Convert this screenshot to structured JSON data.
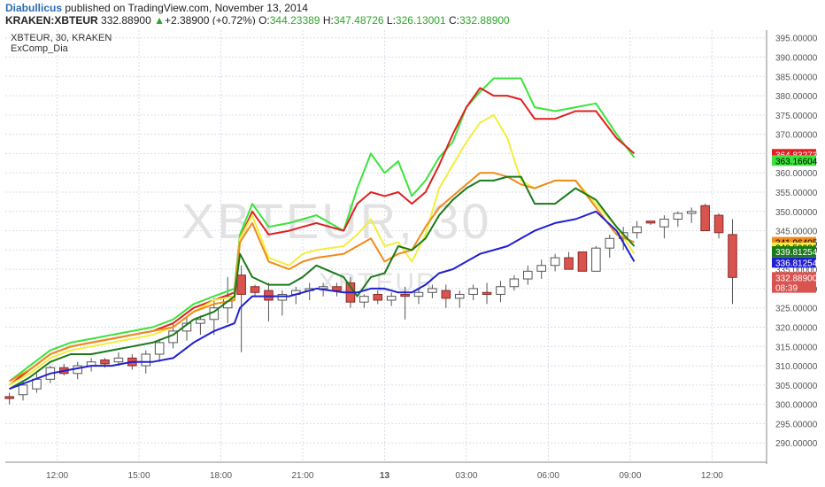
{
  "header": {
    "author": "Diabullicus",
    "published_text": "published on TradingView.com, November 13, 2014",
    "symbol": "KRAKEN:XBTEUR",
    "last": "332.88900",
    "change_arrow": "▲",
    "change": "+2.38900 (+0.72%)",
    "o_label": "O:",
    "o_value": "344.23389",
    "h_label": "H:",
    "h_value": "347.48726",
    "l_label": "L:",
    "l_value": "326.13001",
    "c_label": "C:",
    "c_value": "332.88900"
  },
  "legend": {
    "line1": "XBTEUR, 30, KRAKEN",
    "line2": "ExComp_Dia"
  },
  "watermark": {
    "main": "XBTEUR, 30",
    "sub": "XBTEUR"
  },
  "colors": {
    "up_candle": "#ffffff",
    "up_border": "#555555",
    "down_candle": "#d9534f",
    "down_border": "#8a2a26",
    "bright_green": "#3be33b",
    "red": "#e02020",
    "yellow": "#f2ee3c",
    "orange": "#f08a1a",
    "dark_green": "#1a7a1a",
    "blue": "#2020d0",
    "grid": "#d8dde8",
    "axis_text": "#555555"
  },
  "chart_data": {
    "type": "line",
    "ylim": [
      285,
      397
    ],
    "y_ticks": [
      "290.00000",
      "295.00000",
      "300.00000",
      "305.00000",
      "310.00000",
      "315.00000",
      "320.00000",
      "325.00000",
      "330.00000",
      "335.00000",
      "340.00000",
      "345.00000",
      "350.00000",
      "355.00000",
      "360.00000",
      "365.00000",
      "370.00000",
      "375.00000",
      "380.00000",
      "385.00000",
      "390.00000",
      "395.00000"
    ],
    "y_tick_values": [
      290,
      295,
      300,
      305,
      310,
      315,
      320,
      325,
      330,
      335,
      340,
      345,
      350,
      355,
      360,
      365,
      370,
      375,
      380,
      385,
      390,
      395
    ],
    "x_labels": [
      {
        "t": 3.5,
        "label": "12:00"
      },
      {
        "t": 9.5,
        "label": "15:00"
      },
      {
        "t": 15.5,
        "label": "18:00"
      },
      {
        "t": 21.5,
        "label": "21:00"
      },
      {
        "t": 27.5,
        "label": "13"
      },
      {
        "t": 33.5,
        "label": "03:00"
      },
      {
        "t": 39.5,
        "label": "06:00"
      },
      {
        "t": 45.5,
        "label": "09:00"
      },
      {
        "t": 51.5,
        "label": "12:00"
      }
    ],
    "candles": [
      [
        302,
        303,
        300,
        301.5
      ],
      [
        302.5,
        306,
        301,
        305
      ],
      [
        304,
        308,
        303,
        306.5
      ],
      [
        306.5,
        310,
        305.5,
        309.5
      ],
      [
        309.5,
        310.5,
        307.5,
        308
      ],
      [
        308,
        311,
        306.5,
        310
      ],
      [
        310,
        312,
        308.5,
        311
      ],
      [
        311.5,
        312,
        309.5,
        310.5
      ],
      [
        311,
        313.5,
        310,
        312
      ],
      [
        312,
        313,
        309,
        310
      ],
      [
        310,
        314,
        308,
        313
      ],
      [
        313,
        317,
        311,
        316
      ],
      [
        316,
        321,
        314.5,
        319
      ],
      [
        319,
        322.5,
        316.5,
        321
      ],
      [
        321,
        323,
        318,
        322
      ],
      [
        322,
        327.5,
        318,
        325
      ],
      [
        325,
        333,
        321,
        328
      ],
      [
        333.5,
        336,
        313.5,
        328.5
      ],
      [
        330.5,
        331,
        328,
        329
      ],
      [
        329.5,
        331.5,
        321.5,
        327
      ],
      [
        327,
        329.5,
        323,
        328.5
      ],
      [
        328.5,
        330.5,
        326,
        329.5
      ],
      [
        329.5,
        331.5,
        327,
        330
      ],
      [
        330,
        331.5,
        328,
        330.5
      ],
      [
        330.5,
        331.5,
        328,
        329.5
      ],
      [
        331.5,
        333,
        325,
        326.5
      ],
      [
        326.5,
        328.5,
        325,
        328
      ],
      [
        328.5,
        329.5,
        326,
        327
      ],
      [
        327,
        329,
        325.5,
        328
      ],
      [
        328.5,
        330.5,
        322,
        328
      ],
      [
        328,
        330,
        326,
        329
      ],
      [
        329,
        331,
        327.5,
        330
      ],
      [
        329.5,
        331,
        325,
        327.5
      ],
      [
        327.5,
        329.5,
        325,
        328.5
      ],
      [
        328.5,
        331,
        327,
        330
      ],
      [
        329,
        331.5,
        326,
        328.5
      ],
      [
        328.5,
        332,
        326.5,
        330.5
      ],
      [
        330.5,
        333.5,
        329.5,
        332.5
      ],
      [
        332.5,
        336,
        331,
        334.5
      ],
      [
        334.5,
        337.5,
        332.5,
        336
      ],
      [
        336,
        339,
        334.5,
        338
      ],
      [
        338,
        339.5,
        335,
        335
      ],
      [
        339.5,
        339.5,
        334.5,
        334.5
      ],
      [
        334.5,
        341,
        334.5,
        340.5
      ],
      [
        340.5,
        344,
        338,
        343
      ],
      [
        343,
        346,
        340,
        344.5
      ],
      [
        344.5,
        347.5,
        343,
        346
      ],
      [
        347.5,
        347.5,
        346.5,
        347
      ],
      [
        346,
        349,
        343,
        348
      ],
      [
        348,
        350,
        346,
        349.5
      ],
      [
        349.5,
        351,
        347,
        350
      ],
      [
        351.5,
        352,
        346,
        345
      ],
      [
        349,
        349.5,
        343,
        344.5
      ],
      [
        344,
        348,
        326,
        332.9
      ]
    ],
    "candle_t_start": 0,
    "series": [
      {
        "color_key": "bright_green",
        "values": [
          306,
          310,
          314,
          316,
          317,
          318,
          319,
          320,
          322,
          326,
          328,
          330,
          344,
          352,
          346,
          347,
          348,
          349,
          345,
          356,
          365,
          360,
          363,
          354,
          358,
          364,
          368,
          377,
          381,
          384.5,
          384.5,
          384.5,
          377,
          376,
          377,
          378,
          370,
          364
        ]
      },
      {
        "color_key": "red",
        "values": [
          305,
          309,
          313,
          315,
          316,
          317,
          318,
          319,
          321,
          325,
          327,
          329,
          343,
          350,
          344,
          345,
          346,
          347,
          345,
          352,
          355,
          354,
          355,
          352,
          355,
          362,
          370,
          377,
          382,
          380,
          380,
          379,
          374,
          374,
          376,
          376,
          369,
          365
        ]
      },
      {
        "color_key": "yellow",
        "values": [
          305,
          308,
          312,
          314,
          315,
          316,
          317,
          318,
          320,
          324,
          327,
          328,
          343,
          349,
          338,
          336,
          339,
          340,
          341,
          344,
          348,
          341,
          342,
          337,
          344,
          356,
          362,
          368,
          373,
          375,
          369,
          358,
          356,
          358,
          358,
          352,
          346,
          339
        ]
      },
      {
        "color_key": "orange",
        "values": [
          306,
          309,
          313,
          315,
          316,
          317,
          318,
          319,
          320,
          324,
          326,
          327,
          342,
          347,
          337,
          335,
          337,
          338,
          339,
          341,
          343,
          337,
          339,
          340,
          346,
          351,
          354,
          357,
          360,
          360,
          359,
          357,
          356,
          358,
          358,
          351,
          344,
          342
        ]
      },
      {
        "color_key": "dark_green",
        "values": [
          304,
          307,
          311,
          313,
          313,
          314,
          315,
          316,
          318,
          322,
          324,
          328,
          339,
          333,
          331,
          331,
          333,
          336,
          333,
          328,
          333,
          334,
          341,
          340,
          343,
          349,
          353,
          356,
          358,
          358,
          359,
          359,
          352,
          352,
          356,
          353,
          346,
          341
        ]
      },
      {
        "color_key": "blue",
        "values": [
          304,
          306,
          308,
          309,
          310,
          310,
          311,
          311,
          312,
          316,
          319,
          321,
          325,
          328,
          328,
          328,
          329,
          330,
          329,
          329,
          330,
          330,
          329,
          329,
          331,
          334,
          335,
          337,
          339,
          340,
          341,
          343,
          345,
          347,
          348,
          350,
          345,
          337
        ]
      }
    ],
    "series_t": [
      0,
      1.5,
      3,
      4.5,
      6,
      7.5,
      9,
      10.5,
      12,
      13.5,
      15,
      16.5,
      16.9,
      17.8,
      19,
      20.5,
      21.5,
      22.5,
      24.5,
      25.5,
      26.5,
      27.5,
      28.5,
      29.5,
      30.5,
      31.5,
      32.5,
      33.5,
      34.5,
      35.5,
      36.5,
      37.5,
      38.5,
      40,
      41.5,
      43,
      44.5,
      45.8
    ],
    "price_labels": [
      {
        "value": "364.83273",
        "y": 364.8,
        "bg": "#e02020",
        "fg": "#ffffff"
      },
      {
        "value": "363.16604",
        "y": 363.2,
        "bg": "#3be33b",
        "fg": "#000000"
      },
      {
        "value": "341.96405",
        "y": 342.0,
        "bg": "#f08a1a",
        "fg": "#000000"
      },
      {
        "value": "340.59926",
        "y": 340.6,
        "bg": "#f2ee3c",
        "fg": "#000000"
      },
      {
        "value": "339.81254",
        "y": 339.6,
        "bg": "#1a7a1a",
        "fg": "#ffffff"
      },
      {
        "value": "336.81254",
        "y": 336.8,
        "bg": "#2020d0",
        "fg": "#ffffff"
      },
      {
        "value": "332.88900",
        "y": 332.9,
        "bg": "#d9534f",
        "fg": "#ffffff"
      },
      {
        "value": "08:39",
        "y": 330.3,
        "bg": "#d9534f",
        "fg": "#ffffff"
      }
    ]
  }
}
